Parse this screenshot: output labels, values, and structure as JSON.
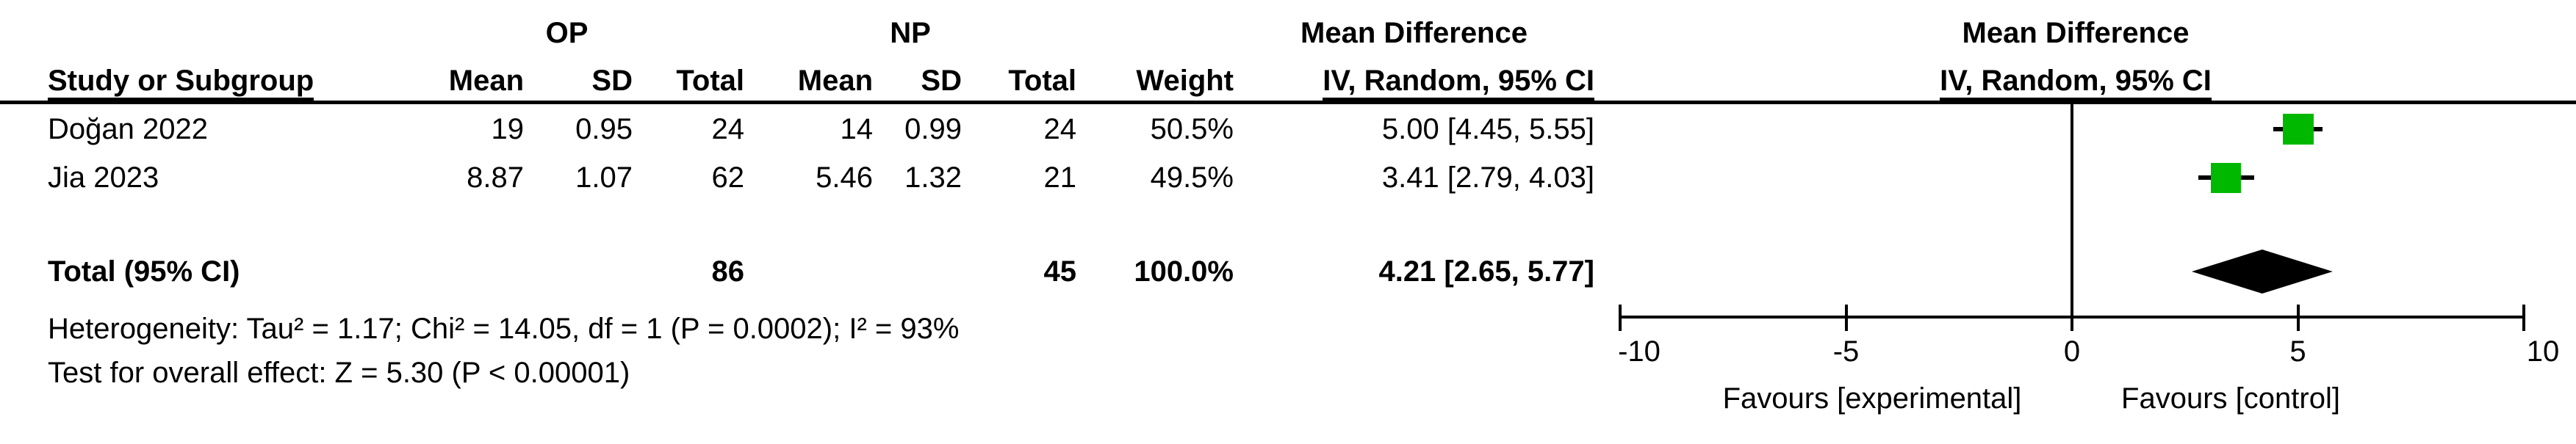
{
  "colors": {
    "square_green": "#00b800",
    "diamond_black": "#000000",
    "text": "#000000"
  },
  "table": {
    "group_headers": {
      "op": "OP",
      "np": "NP",
      "effect": "Mean Difference"
    },
    "column_headers": {
      "study": "Study or Subgroup",
      "mean": "Mean",
      "sd": "SD",
      "total": "Total",
      "weight": "Weight",
      "ci": "IV, Random, 95% CI"
    },
    "rows": [
      [
        "Doğan 2022",
        "19",
        "0.95",
        "24",
        "14",
        "0.99",
        "24",
        "50.5%",
        "5.00 [4.45, 5.55]"
      ],
      [
        "Jia 2023",
        "8.87",
        "1.07",
        "62",
        "5.46",
        "1.32",
        "21",
        "49.5%",
        "3.41 [2.79, 4.03]"
      ]
    ],
    "total_row": {
      "label": "Total (95% CI)",
      "op_total": "86",
      "np_total": "45",
      "weight": "100.0%",
      "effect": "4.21 [2.65, 5.77]"
    },
    "footnotes": {
      "heterogeneity": "Heterogeneity: Tau² = 1.17; Chi² = 14.05, df = 1 (P = 0.0002); I² = 93%",
      "overall_effect": "Test for overall effect: Z = 5.30 (P < 0.00001)"
    }
  },
  "plot": {
    "header1": "Mean Difference",
    "header2": "IV, Random, 95% CI",
    "favours_left": "Favours [experimental]",
    "favours_right": "Favours [control]"
  },
  "chart_data": {
    "type": "forest",
    "effect_measure": "Mean Difference",
    "method": "IV, Random, 95% CI",
    "groups": [
      "OP",
      "NP"
    ],
    "studies": [
      {
        "name": "Doğan 2022",
        "op": {
          "mean": 19,
          "sd": 0.95,
          "total": 24
        },
        "np": {
          "mean": 14,
          "sd": 0.99,
          "total": 24
        },
        "weight_pct": 50.5,
        "md": 5.0,
        "ci": [
          4.45,
          5.55
        ]
      },
      {
        "name": "Jia 2023",
        "op": {
          "mean": 8.87,
          "sd": 1.07,
          "total": 62
        },
        "np": {
          "mean": 5.46,
          "sd": 1.32,
          "total": 21
        },
        "weight_pct": 49.5,
        "md": 3.41,
        "ci": [
          2.79,
          4.03
        ]
      }
    ],
    "total": {
      "label": "Total (95% CI)",
      "op_total": 86,
      "np_total": 45,
      "weight_pct": 100.0,
      "md": 4.21,
      "ci": [
        2.65,
        5.77
      ]
    },
    "heterogeneity": {
      "tau2": 1.17,
      "chi2": 14.05,
      "df": 1,
      "p": "0.0002",
      "i2_pct": 93
    },
    "overall_effect": {
      "z": 5.3,
      "p": "< 0.00001"
    },
    "x_axis": {
      "min": -10,
      "max": 10,
      "ticks": [
        -10,
        -5,
        0,
        5,
        10
      ],
      "left_label": "Favours [experimental]",
      "right_label": "Favours [control]"
    }
  }
}
